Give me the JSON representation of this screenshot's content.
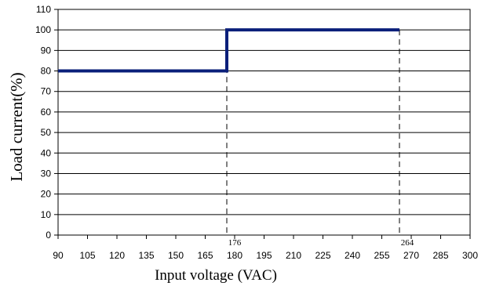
{
  "chart_data": {
    "type": "line",
    "title": "",
    "xlabel": "Input voltage (VAC)",
    "ylabel": "Load current(%)",
    "xlim": [
      90,
      300
    ],
    "ylim": [
      0,
      110
    ],
    "x_ticks": [
      90,
      105,
      120,
      135,
      150,
      165,
      180,
      195,
      210,
      225,
      240,
      255,
      270,
      285,
      300
    ],
    "y_ticks": [
      0,
      10,
      20,
      30,
      40,
      50,
      60,
      70,
      80,
      90,
      100,
      110
    ],
    "grid": "horizontal",
    "series": [
      {
        "color": "#0a1f7a",
        "step": true,
        "points": [
          {
            "x": 90,
            "y": 80
          },
          {
            "x": 176,
            "y": 80
          },
          {
            "x": 176,
            "y": 100
          },
          {
            "x": 264,
            "y": 100
          }
        ]
      }
    ],
    "markers": [
      {
        "x": 176,
        "label": "176",
        "style": "dashed"
      },
      {
        "x": 264,
        "label": "264",
        "style": "dashed"
      }
    ]
  }
}
